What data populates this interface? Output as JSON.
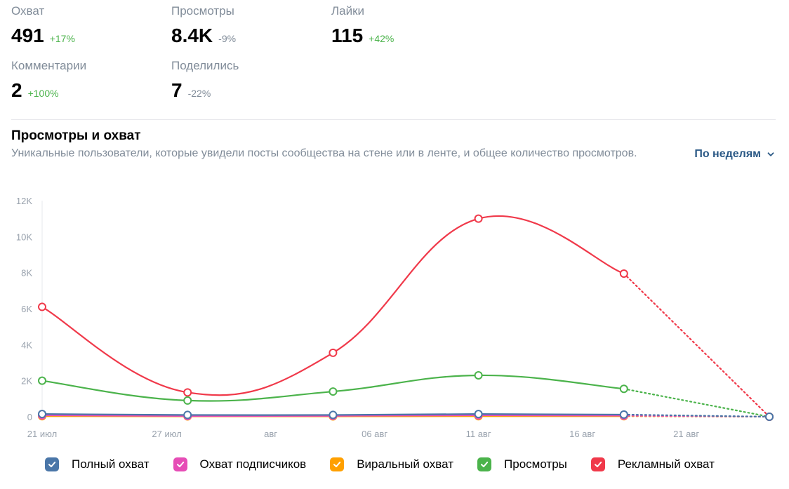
{
  "stats": {
    "reach": {
      "label": "Охват",
      "value": "491",
      "delta": "+17%"
    },
    "views": {
      "label": "Просмотры",
      "value": "8.4K",
      "delta": "-9%"
    },
    "likes": {
      "label": "Лайки",
      "value": "115",
      "delta": "+42%"
    },
    "comments": {
      "label": "Комментарии",
      "value": "2",
      "delta": "+100%"
    },
    "shares": {
      "label": "Поделились",
      "value": "7",
      "delta": "-22%"
    }
  },
  "section": {
    "title": "Просмотры и охват",
    "description": "Уникальные пользователи, которые увидели посты сообщества на стене или в ленте, и общее количество просмотров."
  },
  "period_select": {
    "label": "По неделям",
    "icon": "chevron-down-icon"
  },
  "colors": {
    "full_reach": "#4a76a8",
    "subscribers_reach": "#e64db6",
    "viral_reach": "#ffa000",
    "views": "#4bb34b",
    "ad_reach": "#f0394a",
    "positive_delta": "#4bb34b",
    "neutral_delta": "#818c99",
    "link": "#2a5885"
  },
  "chart_data": {
    "type": "line",
    "y_tick_labels": [
      "0",
      "2K",
      "4K",
      "6K",
      "8K",
      "10K",
      "12K"
    ],
    "ylim": [
      0,
      12000
    ],
    "x_tick_labels": [
      {
        "label": "21 июл",
        "day": 0
      },
      {
        "label": "27 июл",
        "day": 6
      },
      {
        "label": "авг",
        "day": 11
      },
      {
        "label": "06 авг",
        "day": 16
      },
      {
        "label": "11 авг",
        "day": 21
      },
      {
        "label": "16 авг",
        "day": 26
      },
      {
        "label": "21 авг",
        "day": 31
      }
    ],
    "x_points": [
      "21 июл",
      "28 июл",
      "04 авг",
      "11 авг",
      "18 авг",
      "25 авг"
    ],
    "x_point_days": [
      0,
      7,
      14,
      21,
      28,
      35
    ],
    "last_segment_dotted": true,
    "series": [
      {
        "name": "Рекламный охват",
        "color": "#f0394a",
        "values": [
          6100,
          1350,
          3550,
          11000,
          7950,
          0
        ]
      },
      {
        "name": "Просмотры",
        "color": "#4bb34b",
        "values": [
          2000,
          900,
          1400,
          2300,
          1550,
          0
        ]
      },
      {
        "name": "Виральный охват",
        "color": "#ffa000",
        "values": [
          30,
          20,
          20,
          30,
          30,
          0
        ]
      },
      {
        "name": "Охват подписчиков",
        "color": "#e64db6",
        "values": [
          80,
          40,
          50,
          80,
          60,
          0
        ]
      },
      {
        "name": "Полный охват",
        "color": "#4a76a8",
        "values": [
          150,
          100,
          100,
          150,
          120,
          0
        ]
      }
    ]
  },
  "legend": [
    {
      "label": "Полный охват",
      "color": "#4a76a8"
    },
    {
      "label": "Охват подписчиков",
      "color": "#e64db6"
    },
    {
      "label": "Виральный охват",
      "color": "#ffa000"
    },
    {
      "label": "Просмотры",
      "color": "#4bb34b"
    },
    {
      "label": "Рекламный охват",
      "color": "#f0394a"
    }
  ]
}
